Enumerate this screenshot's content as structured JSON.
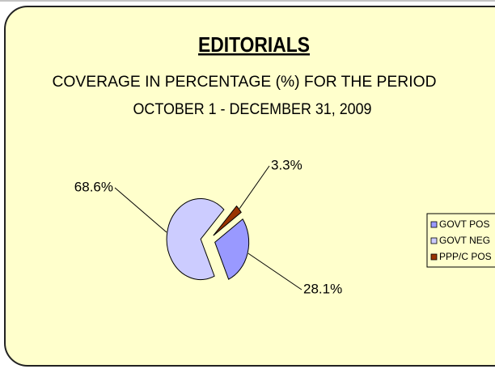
{
  "chart_data": {
    "type": "pie",
    "title": "EDITORIALS",
    "subtitle": [
      "COVERAGE IN PERCENTAGE (%) FOR THE PERIOD",
      "OCTOBER 1 - DECEMBER 31, 2009"
    ],
    "categories": [
      "GOVT POS",
      "GOVT NEG",
      "PPP/C POS"
    ],
    "values": [
      28.1,
      68.6,
      3.3
    ],
    "value_labels": [
      "28.1%",
      "68.6%",
      "3.3%"
    ],
    "colors": [
      "#9999ff",
      "#ccccff",
      "#993300"
    ],
    "legend": "right"
  }
}
